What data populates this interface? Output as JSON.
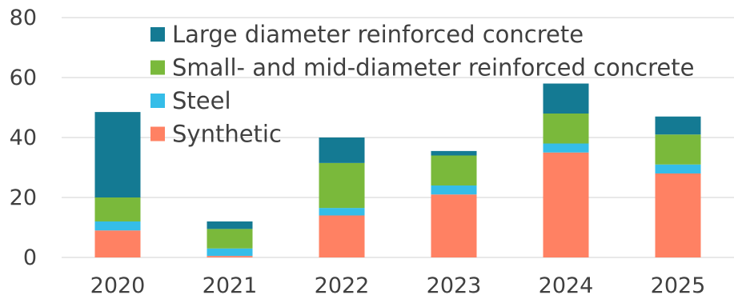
{
  "chart_data": {
    "type": "bar",
    "stacked": true,
    "categories": [
      "2020",
      "2021",
      "2022",
      "2023",
      "2024",
      "2025"
    ],
    "series": [
      {
        "name": "Synthetic",
        "color": "#ff8163",
        "values": [
          9,
          0.5,
          14,
          21,
          35,
          28
        ]
      },
      {
        "name": "Steel",
        "color": "#35bde8",
        "values": [
          3,
          2.5,
          2.5,
          3,
          3,
          3
        ]
      },
      {
        "name": "Small- and mid-diameter reinforced concrete",
        "color": "#7ab93b",
        "values": [
          8,
          6.5,
          15,
          10,
          10,
          10
        ]
      },
      {
        "name": "Large diameter reinforced concrete",
        "color": "#147a93",
        "values": [
          28.5,
          2.5,
          8.5,
          1.5,
          10,
          6
        ]
      }
    ],
    "legend_order": [
      "Large diameter reinforced concrete",
      "Small- and mid-diameter reinforced concrete",
      "Steel",
      "Synthetic"
    ],
    "yticks": [
      "0",
      "20",
      "40",
      "60",
      "80"
    ],
    "ylim": [
      0,
      80
    ],
    "grid": true,
    "legend_position": "top"
  }
}
